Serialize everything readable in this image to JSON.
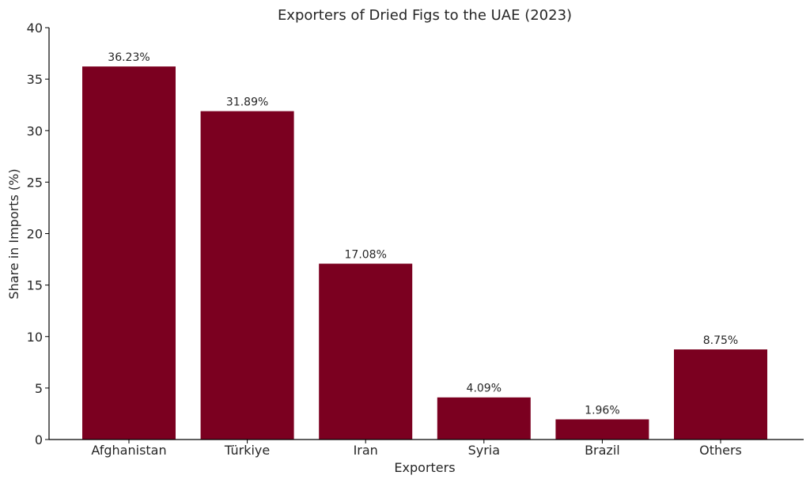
{
  "chart_data": {
    "type": "bar",
    "title": "Exporters of Dried Figs to the UAE (2023)",
    "xlabel": "Exporters",
    "ylabel": "Share in Imports (%)",
    "categories": [
      "Afghanistan",
      "Türkiye",
      "Iran",
      "Syria",
      "Brazil",
      "Others"
    ],
    "values": [
      36.23,
      31.89,
      17.08,
      4.09,
      1.96,
      8.75
    ],
    "data_labels": [
      "36.23%",
      "31.89%",
      "17.08%",
      "4.09%",
      "1.96%",
      "8.75%"
    ],
    "ylim": [
      0,
      40
    ],
    "yticks": [
      0,
      5,
      10,
      15,
      20,
      25,
      30,
      35,
      40
    ],
    "bar_color": "#7b0020",
    "grid": false,
    "legend": "none"
  }
}
